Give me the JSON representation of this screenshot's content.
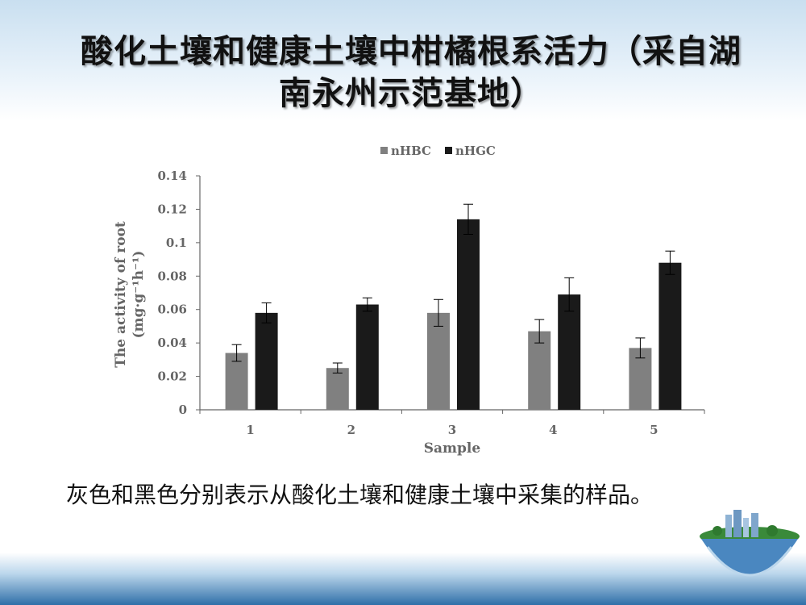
{
  "slide": {
    "title_line1": "酸化土壤和健康土壤中柑橘根系活力（采自湖",
    "title_line2": "南永州示范基地）",
    "caption": "灰色和黑色分别表示从酸化土壤和健康土壤中采集的样品。"
  },
  "colors": {
    "series_gray": "#808080",
    "series_black": "#1a1a1a",
    "axis": "#666666"
  },
  "chart_data": {
    "type": "bar",
    "categories": [
      "1",
      "2",
      "3",
      "4",
      "5"
    ],
    "series": [
      {
        "name": "nHBC",
        "values": [
          0.034,
          0.025,
          0.058,
          0.047,
          0.037
        ],
        "errors": [
          0.005,
          0.003,
          0.008,
          0.007,
          0.006
        ],
        "color": "#808080"
      },
      {
        "name": "nHGC",
        "values": [
          0.058,
          0.063,
          0.114,
          0.069,
          0.088
        ],
        "errors": [
          0.006,
          0.004,
          0.009,
          0.01,
          0.007
        ],
        "color": "#1a1a1a"
      }
    ],
    "yticks": [
      "0",
      "0.02",
      "0.04",
      "0.06",
      "0.08",
      "0.1",
      "0.12",
      "0.14"
    ],
    "ylim": [
      0,
      0.14
    ],
    "xlabel": "Sample",
    "ylabel_line1": "The activity of root",
    "ylabel_line2": "(mg·g⁻¹h⁻¹)",
    "legend_position": "top-center",
    "grid": false
  }
}
